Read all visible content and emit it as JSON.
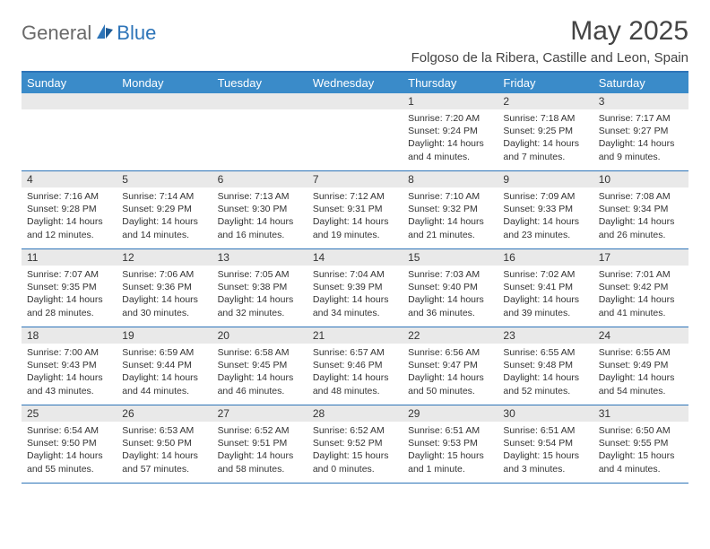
{
  "brand": {
    "general": "General",
    "blue": "Blue"
  },
  "colors": {
    "accent": "#3a8bc9",
    "border": "#2d74b8",
    "daybg": "#e9e9e9",
    "text": "#333333"
  },
  "title": "May 2025",
  "location": "Folgoso de la Ribera, Castille and Leon, Spain",
  "day_names": [
    "Sunday",
    "Monday",
    "Tuesday",
    "Wednesday",
    "Thursday",
    "Friday",
    "Saturday"
  ],
  "weeks": [
    [
      null,
      null,
      null,
      null,
      {
        "n": "1",
        "sunrise": "Sunrise: 7:20 AM",
        "sunset": "Sunset: 9:24 PM",
        "daylight": "Daylight: 14 hours and 4 minutes."
      },
      {
        "n": "2",
        "sunrise": "Sunrise: 7:18 AM",
        "sunset": "Sunset: 9:25 PM",
        "daylight": "Daylight: 14 hours and 7 minutes."
      },
      {
        "n": "3",
        "sunrise": "Sunrise: 7:17 AM",
        "sunset": "Sunset: 9:27 PM",
        "daylight": "Daylight: 14 hours and 9 minutes."
      }
    ],
    [
      {
        "n": "4",
        "sunrise": "Sunrise: 7:16 AM",
        "sunset": "Sunset: 9:28 PM",
        "daylight": "Daylight: 14 hours and 12 minutes."
      },
      {
        "n": "5",
        "sunrise": "Sunrise: 7:14 AM",
        "sunset": "Sunset: 9:29 PM",
        "daylight": "Daylight: 14 hours and 14 minutes."
      },
      {
        "n": "6",
        "sunrise": "Sunrise: 7:13 AM",
        "sunset": "Sunset: 9:30 PM",
        "daylight": "Daylight: 14 hours and 16 minutes."
      },
      {
        "n": "7",
        "sunrise": "Sunrise: 7:12 AM",
        "sunset": "Sunset: 9:31 PM",
        "daylight": "Daylight: 14 hours and 19 minutes."
      },
      {
        "n": "8",
        "sunrise": "Sunrise: 7:10 AM",
        "sunset": "Sunset: 9:32 PM",
        "daylight": "Daylight: 14 hours and 21 minutes."
      },
      {
        "n": "9",
        "sunrise": "Sunrise: 7:09 AM",
        "sunset": "Sunset: 9:33 PM",
        "daylight": "Daylight: 14 hours and 23 minutes."
      },
      {
        "n": "10",
        "sunrise": "Sunrise: 7:08 AM",
        "sunset": "Sunset: 9:34 PM",
        "daylight": "Daylight: 14 hours and 26 minutes."
      }
    ],
    [
      {
        "n": "11",
        "sunrise": "Sunrise: 7:07 AM",
        "sunset": "Sunset: 9:35 PM",
        "daylight": "Daylight: 14 hours and 28 minutes."
      },
      {
        "n": "12",
        "sunrise": "Sunrise: 7:06 AM",
        "sunset": "Sunset: 9:36 PM",
        "daylight": "Daylight: 14 hours and 30 minutes."
      },
      {
        "n": "13",
        "sunrise": "Sunrise: 7:05 AM",
        "sunset": "Sunset: 9:38 PM",
        "daylight": "Daylight: 14 hours and 32 minutes."
      },
      {
        "n": "14",
        "sunrise": "Sunrise: 7:04 AM",
        "sunset": "Sunset: 9:39 PM",
        "daylight": "Daylight: 14 hours and 34 minutes."
      },
      {
        "n": "15",
        "sunrise": "Sunrise: 7:03 AM",
        "sunset": "Sunset: 9:40 PM",
        "daylight": "Daylight: 14 hours and 36 minutes."
      },
      {
        "n": "16",
        "sunrise": "Sunrise: 7:02 AM",
        "sunset": "Sunset: 9:41 PM",
        "daylight": "Daylight: 14 hours and 39 minutes."
      },
      {
        "n": "17",
        "sunrise": "Sunrise: 7:01 AM",
        "sunset": "Sunset: 9:42 PM",
        "daylight": "Daylight: 14 hours and 41 minutes."
      }
    ],
    [
      {
        "n": "18",
        "sunrise": "Sunrise: 7:00 AM",
        "sunset": "Sunset: 9:43 PM",
        "daylight": "Daylight: 14 hours and 43 minutes."
      },
      {
        "n": "19",
        "sunrise": "Sunrise: 6:59 AM",
        "sunset": "Sunset: 9:44 PM",
        "daylight": "Daylight: 14 hours and 44 minutes."
      },
      {
        "n": "20",
        "sunrise": "Sunrise: 6:58 AM",
        "sunset": "Sunset: 9:45 PM",
        "daylight": "Daylight: 14 hours and 46 minutes."
      },
      {
        "n": "21",
        "sunrise": "Sunrise: 6:57 AM",
        "sunset": "Sunset: 9:46 PM",
        "daylight": "Daylight: 14 hours and 48 minutes."
      },
      {
        "n": "22",
        "sunrise": "Sunrise: 6:56 AM",
        "sunset": "Sunset: 9:47 PM",
        "daylight": "Daylight: 14 hours and 50 minutes."
      },
      {
        "n": "23",
        "sunrise": "Sunrise: 6:55 AM",
        "sunset": "Sunset: 9:48 PM",
        "daylight": "Daylight: 14 hours and 52 minutes."
      },
      {
        "n": "24",
        "sunrise": "Sunrise: 6:55 AM",
        "sunset": "Sunset: 9:49 PM",
        "daylight": "Daylight: 14 hours and 54 minutes."
      }
    ],
    [
      {
        "n": "25",
        "sunrise": "Sunrise: 6:54 AM",
        "sunset": "Sunset: 9:50 PM",
        "daylight": "Daylight: 14 hours and 55 minutes."
      },
      {
        "n": "26",
        "sunrise": "Sunrise: 6:53 AM",
        "sunset": "Sunset: 9:50 PM",
        "daylight": "Daylight: 14 hours and 57 minutes."
      },
      {
        "n": "27",
        "sunrise": "Sunrise: 6:52 AM",
        "sunset": "Sunset: 9:51 PM",
        "daylight": "Daylight: 14 hours and 58 minutes."
      },
      {
        "n": "28",
        "sunrise": "Sunrise: 6:52 AM",
        "sunset": "Sunset: 9:52 PM",
        "daylight": "Daylight: 15 hours and 0 minutes."
      },
      {
        "n": "29",
        "sunrise": "Sunrise: 6:51 AM",
        "sunset": "Sunset: 9:53 PM",
        "daylight": "Daylight: 15 hours and 1 minute."
      },
      {
        "n": "30",
        "sunrise": "Sunrise: 6:51 AM",
        "sunset": "Sunset: 9:54 PM",
        "daylight": "Daylight: 15 hours and 3 minutes."
      },
      {
        "n": "31",
        "sunrise": "Sunrise: 6:50 AM",
        "sunset": "Sunset: 9:55 PM",
        "daylight": "Daylight: 15 hours and 4 minutes."
      }
    ]
  ]
}
